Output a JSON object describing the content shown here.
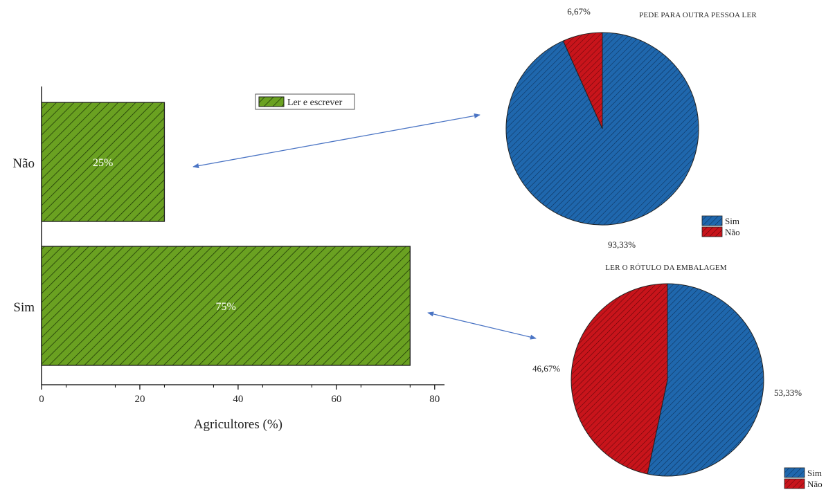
{
  "chart_data": [
    {
      "type": "bar",
      "orientation": "horizontal",
      "categories": [
        "Não",
        "Sim"
      ],
      "series": [
        {
          "name": "Ler e escrever",
          "values": [
            25,
            75
          ],
          "labels": [
            "25%",
            "75%"
          ]
        }
      ],
      "xlabel": "Agricultores (%)",
      "xlim": [
        0,
        82
      ],
      "xticks": [
        0,
        20,
        40,
        60,
        80
      ],
      "legend_position": "top-center",
      "colors": {
        "fill": "#6aa121",
        "hatch": "#1f3a07"
      }
    },
    {
      "type": "pie",
      "title": "PEDE PARA OUTRA PESSOA LER",
      "slices": [
        {
          "name": "Sim",
          "value": 93.33,
          "label": "93,33%",
          "color": "#1f67ad"
        },
        {
          "name": "Não",
          "value": 6.67,
          "label": "6,67%",
          "color": "#c8141b"
        }
      ],
      "legend_position": "bottom-right"
    },
    {
      "type": "pie",
      "title": "LER O RÓTULO DA EMBALAGEM",
      "slices": [
        {
          "name": "Sim",
          "value": 53.33,
          "label": "53,33%",
          "color": "#1f67ad"
        },
        {
          "name": "Não",
          "value": 46.67,
          "label": "46,67%",
          "color": "#c8141b"
        }
      ],
      "legend_position": "bottom-right"
    }
  ],
  "arrow_color": "#4a74c4"
}
